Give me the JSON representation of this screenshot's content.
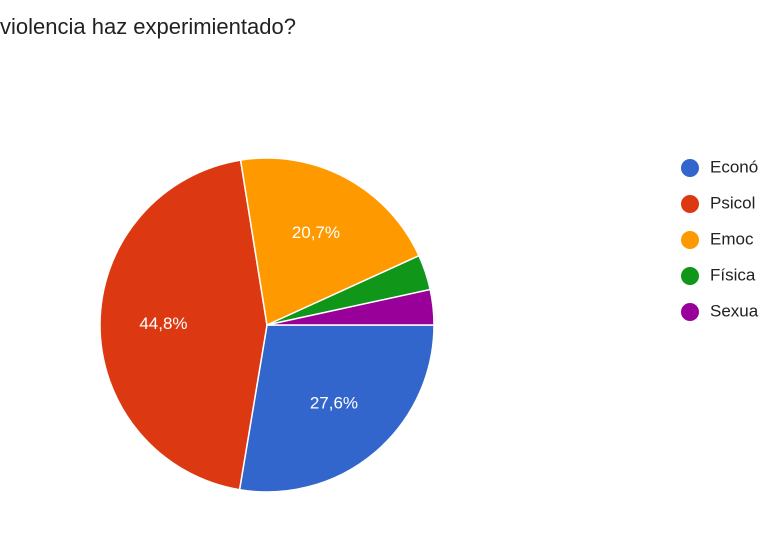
{
  "chart_data": {
    "type": "pie",
    "title": "violencia haz experimientado?",
    "categories": [
      "Econó",
      "Psicol",
      "Emoc",
      "Física",
      "Sexua"
    ],
    "values": [
      27.6,
      44.8,
      20.7,
      3.4,
      3.4
    ],
    "value_labels": [
      "27,6%",
      "44,8%",
      "20,7%",
      null,
      null
    ],
    "colors": [
      "#3366cc",
      "#dc3912",
      "#ff9900",
      "#109618",
      "#990099"
    ],
    "legend": "right"
  }
}
